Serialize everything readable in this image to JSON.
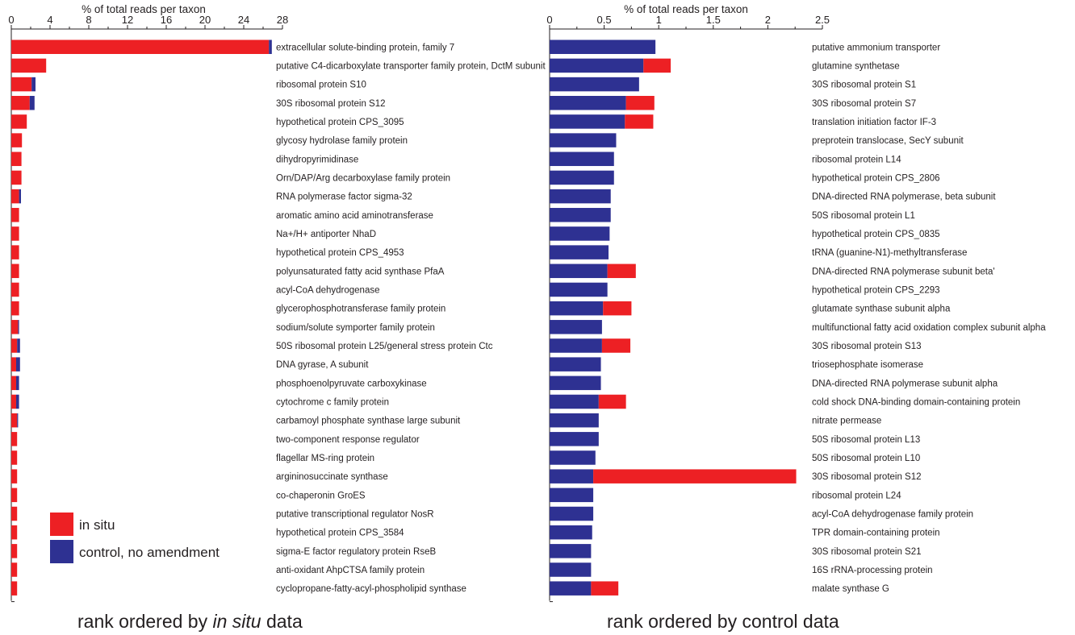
{
  "colors": {
    "in_situ": "#ed2024",
    "control": "#2e3192",
    "axis": "#231f20"
  },
  "legend": [
    {
      "key": "in_situ",
      "label": "in situ"
    },
    {
      "key": "control",
      "label": "control, no amendment"
    }
  ],
  "captions": {
    "left": {
      "before": "rank ordered by ",
      "italic": "in situ",
      "after": " data"
    },
    "right": {
      "text": "rank ordered by control data"
    }
  },
  "chart_data": [
    {
      "type": "bar",
      "orientation": "horizontal",
      "stacked": true,
      "title": "",
      "xlabel": "% of total reads per taxon",
      "xlim": [
        0,
        28
      ],
      "xticks": [
        0,
        4,
        8,
        12,
        16,
        20,
        24,
        28
      ],
      "legend_position": "bottom-left",
      "grid": false,
      "categories": [
        "extracellular solute-binding protein, family 7",
        "putative C4-dicarboxylate transporter family protein, DctM subunit",
        "ribosomal protein S10",
        "30S ribosomal protein S12",
        "hypothetical protein CPS_3095",
        "glycosy hydrolase family protein",
        "dihydropyrimidinase",
        "Orn/DAP/Arg decarboxylase family protein",
        "RNA polymerase factor sigma-32",
        "aromatic amino acid aminotransferase",
        "Na+/H+ antiporter NhaD",
        "hypothetical protein CPS_4953",
        "polyunsaturated fatty acid synthase PfaA",
        "acyl-CoA dehydrogenase",
        "glycerophosphotransferase family protein",
        "sodium/solute symporter family protein",
        "50S ribosomal protein L25/general stress protein Ctc",
        "DNA gyrase, A subunit",
        "phosphoenolpyruvate carboxykinase",
        "cytochrome c family protein",
        "carbamoyl phosphate synthase large subunit",
        "two-component response regulator",
        "flagellar MS-ring protein",
        "argininosuccinate synthase",
        "co-chaperonin GroES",
        "putative transcriptional regulator NosR",
        "hypothetical protein CPS_3584",
        "sigma-E factor regulatory protein RseB",
        "anti-oxidant AhpCTSA family protein",
        "cyclopropane-fatty-acyl-phospholipid synthase"
      ],
      "series": [
        {
          "name": "in situ",
          "color_key": "in_situ",
          "values": [
            26.6,
            3.6,
            2.1,
            1.9,
            1.6,
            1.1,
            1.05,
            1.05,
            0.8,
            0.8,
            0.8,
            0.8,
            0.8,
            0.8,
            0.8,
            0.7,
            0.6,
            0.5,
            0.5,
            0.5,
            0.6,
            0.6,
            0.6,
            0.6,
            0.6,
            0.6,
            0.6,
            0.6,
            0.6,
            0.6
          ]
        },
        {
          "name": "control, no amendment",
          "color_key": "control",
          "values": [
            0.3,
            0.0,
            0.4,
            0.5,
            0.0,
            0.0,
            0.0,
            0.0,
            0.2,
            0.0,
            0.0,
            0.0,
            0.0,
            0.0,
            0.0,
            0.1,
            0.3,
            0.4,
            0.3,
            0.3,
            0.1,
            0.0,
            0.0,
            0.0,
            0.0,
            0.0,
            0.0,
            0.0,
            0.0,
            0.0
          ]
        }
      ]
    },
    {
      "type": "bar",
      "orientation": "horizontal",
      "stacked": true,
      "title": "",
      "xlabel": "% of total reads per taxon",
      "xlim": [
        0,
        2.5
      ],
      "xticks": [
        0,
        0.5,
        1,
        1.5,
        2,
        2.5
      ],
      "grid": false,
      "categories": [
        "putative ammonium transporter",
        "glutamine synthetase",
        "30S ribosomal protein S1",
        "30S ribosomal protein S7",
        "translation initiation factor IF-3",
        "preprotein translocase, SecY subunit",
        "ribosomal protein L14",
        "hypothetical protein CPS_2806",
        "DNA-directed RNA polymerase, beta subunit",
        "50S ribosomal protein L1",
        "hypothetical protein CPS_0835",
        "tRNA (guanine-N1)-methyltransferase",
        "DNA-directed RNA polymerase subunit beta'",
        "hypothetical protein CPS_2293",
        "glutamate synthase subunit alpha",
        "multifunctional fatty acid oxidation complex subunit alpha",
        "30S ribosomal protein S13",
        "triosephosphate isomerase",
        "DNA-directed RNA polymerase subunit alpha",
        "cold shock DNA-binding domain-containing protein",
        "nitrate permease",
        "50S ribosomal protein L13",
        "50S ribosomal protein L10",
        "30S ribosomal protein S12",
        "ribosomal protein L24",
        "acyl-CoA dehydrogenase family protein",
        "TPR domain-containing protein",
        "30S ribosomal protein S21",
        "16S rRNA-processing protein",
        "malate synthase G"
      ],
      "series": [
        {
          "name": "control, no amendment",
          "color_key": "control",
          "values": [
            0.97,
            0.86,
            0.82,
            0.7,
            0.69,
            0.61,
            0.59,
            0.59,
            0.56,
            0.56,
            0.55,
            0.54,
            0.53,
            0.53,
            0.49,
            0.48,
            0.48,
            0.47,
            0.47,
            0.45,
            0.45,
            0.45,
            0.42,
            0.4,
            0.4,
            0.4,
            0.39,
            0.38,
            0.38,
            0.38
          ]
        },
        {
          "name": "in situ",
          "color_key": "in_situ",
          "values": [
            0.0,
            0.25,
            0.0,
            0.26,
            0.26,
            0.0,
            0.0,
            0.0,
            0.0,
            0.0,
            0.0,
            0.0,
            0.26,
            0.0,
            0.26,
            0.0,
            0.26,
            0.0,
            0.0,
            0.25,
            0.0,
            0.0,
            0.0,
            1.86,
            0.0,
            0.0,
            0.0,
            0.0,
            0.0,
            0.25
          ]
        }
      ]
    }
  ]
}
